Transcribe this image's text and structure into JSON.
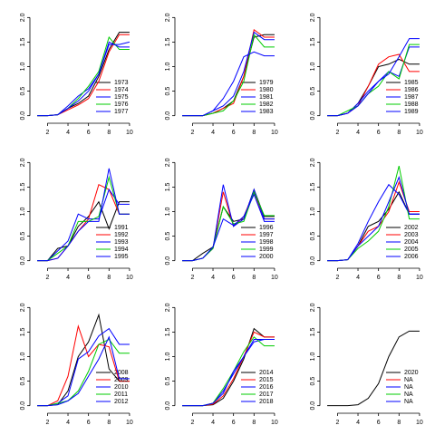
{
  "chart_data": [
    {
      "type": "line",
      "x": [
        1,
        2,
        3,
        4,
        5,
        6,
        7,
        8,
        9,
        10
      ],
      "xlim": [
        0.64,
        10.36
      ],
      "ylim": [
        -0.08,
        2.08
      ],
      "xticks": [
        2,
        4,
        6,
        8,
        10
      ],
      "yticks": [
        {
          "value": 0,
          "label": "0.0"
        },
        {
          "value": 0.5,
          "label": "0.5"
        },
        {
          "value": 1,
          "label": "1.0"
        },
        {
          "value": 1.5,
          "label": "1.5"
        },
        {
          "value": 2,
          "label": "2.0"
        }
      ],
      "series": [
        {
          "name": "1973",
          "color": "#000000",
          "values": [
            0,
            0,
            0.02,
            0.15,
            0.25,
            0.4,
            0.8,
            1.35,
            1.7,
            1.7
          ]
        },
        {
          "name": "1974",
          "color": "#ff0000",
          "values": [
            0,
            0,
            0.02,
            0.12,
            0.22,
            0.35,
            0.7,
            1.3,
            1.65,
            1.65
          ]
        },
        {
          "name": "1975",
          "color": "#0000ff",
          "values": [
            0,
            0,
            0.02,
            0.2,
            0.4,
            0.55,
            0.85,
            1.45,
            1.45,
            1.5
          ]
        },
        {
          "name": "1976",
          "color": "#00cc00",
          "values": [
            0,
            0,
            0.02,
            0.15,
            0.35,
            0.6,
            0.9,
            1.6,
            1.35,
            1.35
          ]
        },
        {
          "name": "1977",
          "color": "#0000ff",
          "values": [
            0,
            0,
            0.02,
            0.15,
            0.3,
            0.5,
            0.85,
            1.5,
            1.4,
            1.4
          ]
        }
      ]
    },
    {
      "type": "line",
      "x": [
        1,
        2,
        3,
        4,
        5,
        6,
        7,
        8,
        9,
        10
      ],
      "xlim": [
        0.64,
        10.36
      ],
      "ylim": [
        -0.08,
        2.08
      ],
      "xticks": [
        2,
        4,
        6,
        8,
        10
      ],
      "yticks": [
        {
          "value": 0,
          "label": "0.0"
        },
        {
          "value": 0.5,
          "label": "0.5"
        },
        {
          "value": 1,
          "label": "1.0"
        },
        {
          "value": 1.5,
          "label": "1.5"
        },
        {
          "value": 2,
          "label": "2.0"
        }
      ],
      "series": [
        {
          "name": "1979",
          "color": "#000000",
          "values": [
            0,
            0,
            0,
            0.05,
            0.15,
            0.3,
            0.8,
            1.6,
            1.65,
            1.65
          ]
        },
        {
          "name": "1980",
          "color": "#ff0000",
          "values": [
            0,
            0,
            0,
            0.05,
            0.15,
            0.25,
            0.8,
            1.75,
            1.6,
            1.6
          ]
        },
        {
          "name": "1981",
          "color": "#0000ff",
          "values": [
            0,
            0,
            0,
            0.1,
            0.2,
            0.4,
            0.9,
            1.7,
            1.55,
            1.55
          ]
        },
        {
          "name": "1982",
          "color": "#00cc00",
          "values": [
            0,
            0,
            0,
            0.05,
            0.1,
            0.3,
            0.7,
            1.65,
            1.4,
            1.4
          ]
        },
        {
          "name": "1983",
          "color": "#0000ff",
          "values": [
            0,
            0,
            0,
            0.1,
            0.35,
            0.7,
            1.2,
            1.3,
            1.22,
            1.22
          ]
        }
      ]
    },
    {
      "type": "line",
      "x": [
        1,
        2,
        3,
        4,
        5,
        6,
        7,
        8,
        9,
        10
      ],
      "xlim": [
        0.64,
        10.36
      ],
      "ylim": [
        -0.08,
        2.08
      ],
      "xticks": [
        2,
        4,
        6,
        8,
        10
      ],
      "yticks": [
        {
          "value": 0,
          "label": "0.0"
        },
        {
          "value": 0.5,
          "label": "0.5"
        },
        {
          "value": 1,
          "label": "1.0"
        },
        {
          "value": 1.5,
          "label": "1.5"
        },
        {
          "value": 2,
          "label": "2.0"
        }
      ],
      "series": [
        {
          "name": "1985",
          "color": "#000000",
          "values": [
            0,
            0,
            0.05,
            0.25,
            0.6,
            1.0,
            1.05,
            1.15,
            1.05,
            1.05
          ]
        },
        {
          "name": "1986",
          "color": "#ff0000",
          "values": [
            0,
            0,
            0.05,
            0.2,
            0.6,
            1.05,
            1.2,
            1.25,
            0.9,
            0.9
          ]
        },
        {
          "name": "1987",
          "color": "#0000ff",
          "values": [
            0,
            0,
            0.05,
            0.25,
            0.5,
            0.7,
            0.9,
            0.8,
            1.4,
            1.4
          ]
        },
        {
          "name": "1988",
          "color": "#00cc00",
          "values": [
            0,
            0,
            0.1,
            0.2,
            0.45,
            0.6,
            0.9,
            0.75,
            1.45,
            1.45
          ]
        },
        {
          "name": "1989",
          "color": "#0000ff",
          "values": [
            0,
            0,
            0.05,
            0.2,
            0.45,
            0.7,
            0.85,
            1.2,
            1.57,
            1.57
          ]
        }
      ]
    },
    {
      "type": "line",
      "x": [
        1,
        2,
        3,
        4,
        5,
        6,
        7,
        8,
        9,
        10
      ],
      "xlim": [
        0.64,
        10.36
      ],
      "ylim": [
        -0.08,
        2.08
      ],
      "xticks": [
        2,
        4,
        6,
        8,
        10
      ],
      "yticks": [
        {
          "value": 0,
          "label": "0.0"
        },
        {
          "value": 0.5,
          "label": "0.5"
        },
        {
          "value": 1,
          "label": "1.0"
        },
        {
          "value": 1.5,
          "label": "1.5"
        },
        {
          "value": 2,
          "label": "2.0"
        }
      ],
      "series": [
        {
          "name": "1991",
          "color": "#000000",
          "values": [
            0,
            0,
            0.25,
            0.3,
            0.7,
            0.9,
            1.2,
            0.65,
            1.2,
            1.2
          ]
        },
        {
          "name": "1992",
          "color": "#ff0000",
          "values": [
            0,
            0,
            0.05,
            0.3,
            0.6,
            0.85,
            1.55,
            1.45,
            0.95,
            0.95
          ]
        },
        {
          "name": "1993",
          "color": "#0000ff",
          "values": [
            0,
            0,
            0.2,
            0.4,
            0.95,
            0.85,
            0.85,
            1.45,
            1.15,
            1.15
          ]
        },
        {
          "name": "1994",
          "color": "#00cc00",
          "values": [
            0,
            0,
            0.15,
            0.3,
            0.8,
            0.8,
            0.9,
            1.7,
            0.95,
            0.95
          ]
        },
        {
          "name": "1995",
          "color": "#0000ff",
          "values": [
            0,
            0,
            0.05,
            0.3,
            0.6,
            0.8,
            0.8,
            1.88,
            0.95,
            0.95
          ]
        }
      ]
    },
    {
      "type": "line",
      "x": [
        1,
        2,
        3,
        4,
        5,
        6,
        7,
        8,
        9,
        10
      ],
      "xlim": [
        0.64,
        10.36
      ],
      "ylim": [
        -0.08,
        2.08
      ],
      "xticks": [
        2,
        4,
        6,
        8,
        10
      ],
      "yticks": [
        {
          "value": 0,
          "label": "0.0"
        },
        {
          "value": 0.5,
          "label": "0.5"
        },
        {
          "value": 1,
          "label": "1.0"
        },
        {
          "value": 1.5,
          "label": "1.5"
        },
        {
          "value": 2,
          "label": "2.0"
        }
      ],
      "series": [
        {
          "name": "1996",
          "color": "#000000",
          "values": [
            0,
            0,
            0.15,
            0.28,
            1.1,
            0.8,
            0.85,
            1.45,
            0.9,
            0.9
          ]
        },
        {
          "name": "1997",
          "color": "#ff0000",
          "values": [
            0,
            0,
            0.05,
            0.25,
            1.4,
            0.7,
            0.9,
            1.4,
            0.85,
            0.85
          ]
        },
        {
          "name": "1998",
          "color": "#0000ff",
          "values": [
            0,
            0,
            0.05,
            0.25,
            1.55,
            0.7,
            0.85,
            1.45,
            0.85,
            0.85
          ]
        },
        {
          "name": "1999",
          "color": "#00cc00",
          "values": [
            0,
            0,
            0.05,
            0.25,
            1.1,
            0.75,
            0.8,
            1.4,
            0.92,
            0.92
          ]
        },
        {
          "name": "2000",
          "color": "#0000ff",
          "values": [
            0,
            0,
            0.05,
            0.28,
            0.85,
            0.72,
            0.9,
            1.35,
            0.8,
            0.8
          ]
        }
      ]
    },
    {
      "type": "line",
      "x": [
        1,
        2,
        3,
        4,
        5,
        6,
        7,
        8,
        9,
        10
      ],
      "xlim": [
        0.64,
        10.36
      ],
      "ylim": [
        -0.08,
        2.08
      ],
      "xticks": [
        2,
        4,
        6,
        8,
        10
      ],
      "yticks": [
        {
          "value": 0,
          "label": "0.0"
        },
        {
          "value": 0.5,
          "label": "0.5"
        },
        {
          "value": 1,
          "label": "1.0"
        },
        {
          "value": 1.5,
          "label": "1.5"
        },
        {
          "value": 2,
          "label": "2.0"
        }
      ],
      "series": [
        {
          "name": "2002",
          "color": "#000000",
          "values": [
            0,
            0,
            0.02,
            0.3,
            0.7,
            0.8,
            1.05,
            1.4,
            0.95,
            0.95
          ]
        },
        {
          "name": "2003",
          "color": "#ff0000",
          "values": [
            0,
            0,
            0.02,
            0.3,
            0.6,
            0.7,
            1.0,
            1.6,
            1.0,
            1.0
          ]
        },
        {
          "name": "2004",
          "color": "#0000ff",
          "values": [
            0,
            0,
            0.02,
            0.35,
            0.8,
            1.2,
            1.55,
            1.35,
            0.95,
            0.95
          ]
        },
        {
          "name": "2005",
          "color": "#00cc00",
          "values": [
            0,
            0,
            0.02,
            0.25,
            0.4,
            0.6,
            1.1,
            1.93,
            0.85,
            0.85
          ]
        },
        {
          "name": "2006",
          "color": "#0000ff",
          "values": [
            0,
            0,
            0.02,
            0.3,
            0.5,
            0.7,
            1.2,
            1.7,
            0.95,
            0.95
          ]
        }
      ]
    },
    {
      "type": "line",
      "x": [
        1,
        2,
        3,
        4,
        5,
        6,
        7,
        8,
        9,
        10
      ],
      "xlim": [
        0.64,
        10.36
      ],
      "ylim": [
        -0.08,
        2.08
      ],
      "xticks": [
        2,
        4,
        6,
        8,
        10
      ],
      "yticks": [
        {
          "value": 0,
          "label": "0.0"
        },
        {
          "value": 0.5,
          "label": "0.5"
        },
        {
          "value": 1,
          "label": "1.0"
        },
        {
          "value": 1.5,
          "label": "1.5"
        },
        {
          "value": 2,
          "label": "2.0"
        }
      ],
      "series": [
        {
          "name": "2008",
          "color": "#000000",
          "values": [
            0,
            0,
            0.02,
            0.3,
            1.0,
            1.3,
            1.85,
            0.75,
            0.5,
            0.5
          ]
        },
        {
          "name": "2009",
          "color": "#ff0000",
          "values": [
            0,
            0,
            0.1,
            0.6,
            1.62,
            1.0,
            1.25,
            1.2,
            0.5,
            0.5
          ]
        },
        {
          "name": "2010",
          "color": "#0000ff",
          "values": [
            0,
            0,
            0.05,
            0.2,
            0.95,
            1.1,
            1.42,
            1.57,
            1.25,
            1.25
          ]
        },
        {
          "name": "2011",
          "color": "#00cc00",
          "values": [
            0,
            0,
            0.05,
            0.1,
            0.3,
            0.7,
            1.25,
            1.35,
            1.07,
            1.07
          ]
        },
        {
          "name": "2012",
          "color": "#0000ff",
          "values": [
            0,
            0,
            0.02,
            0.1,
            0.25,
            0.6,
            0.95,
            1.4,
            0.55,
            0.55
          ]
        }
      ]
    },
    {
      "type": "line",
      "x": [
        1,
        2,
        3,
        4,
        5,
        6,
        7,
        8,
        9,
        10
      ],
      "xlim": [
        0.64,
        10.36
      ],
      "ylim": [
        -0.08,
        2.08
      ],
      "xticks": [
        2,
        4,
        6,
        8,
        10
      ],
      "yticks": [
        {
          "value": 0,
          "label": "0.0"
        },
        {
          "value": 0.5,
          "label": "0.5"
        },
        {
          "value": 1,
          "label": "1.0"
        },
        {
          "value": 1.5,
          "label": "1.5"
        },
        {
          "value": 2,
          "label": "2.0"
        }
      ],
      "series": [
        {
          "name": "2014",
          "color": "#000000",
          "values": [
            0,
            0,
            0,
            0.02,
            0.15,
            0.5,
            0.95,
            1.57,
            1.4,
            1.4
          ]
        },
        {
          "name": "2015",
          "color": "#ff0000",
          "values": [
            0,
            0,
            0,
            0.03,
            0.2,
            0.55,
            1.0,
            1.5,
            1.4,
            1.4
          ]
        },
        {
          "name": "2016",
          "color": "#0000ff",
          "values": [
            0,
            0,
            0,
            0.05,
            0.3,
            0.65,
            1.0,
            1.3,
            1.35,
            1.35
          ]
        },
        {
          "name": "2017",
          "color": "#00cc00",
          "values": [
            0,
            0,
            0,
            0.05,
            0.35,
            0.7,
            1.1,
            1.4,
            1.22,
            1.22
          ]
        },
        {
          "name": "2018",
          "color": "#0000ff",
          "values": [
            0,
            0,
            0,
            0.05,
            0.25,
            0.7,
            1.0,
            1.35,
            1.35,
            1.35
          ]
        }
      ]
    },
    {
      "type": "line",
      "x": [
        1,
        2,
        3,
        4,
        5,
        6,
        7,
        8,
        9,
        10
      ],
      "xlim": [
        0.64,
        10.36
      ],
      "ylim": [
        -0.08,
        2.08
      ],
      "xticks": [
        2,
        4,
        6,
        8,
        10
      ],
      "yticks": [
        {
          "value": 0,
          "label": "0.0"
        },
        {
          "value": 0.5,
          "label": "0.5"
        },
        {
          "value": 1,
          "label": "1.0"
        },
        {
          "value": 1.5,
          "label": "1.5"
        },
        {
          "value": 2,
          "label": "2.0"
        }
      ],
      "series": [
        {
          "name": "2020",
          "color": "#000000",
          "values": [
            0,
            0,
            0,
            0.02,
            0.15,
            0.45,
            1.0,
            1.4,
            1.52,
            1.52
          ]
        },
        {
          "name": "NA",
          "color": "#ff0000",
          "values": [
            null,
            null,
            null,
            null,
            null,
            null,
            null,
            null,
            null,
            null
          ]
        },
        {
          "name": "NA",
          "color": "#0000ff",
          "values": [
            null,
            null,
            null,
            null,
            null,
            null,
            null,
            null,
            null,
            null
          ]
        },
        {
          "name": "NA",
          "color": "#00cc00",
          "values": [
            null,
            null,
            null,
            null,
            null,
            null,
            null,
            null,
            null,
            null
          ]
        },
        {
          "name": "NA",
          "color": "#0000ff",
          "values": [
            null,
            null,
            null,
            null,
            null,
            null,
            null,
            null,
            null,
            null
          ]
        }
      ]
    }
  ]
}
